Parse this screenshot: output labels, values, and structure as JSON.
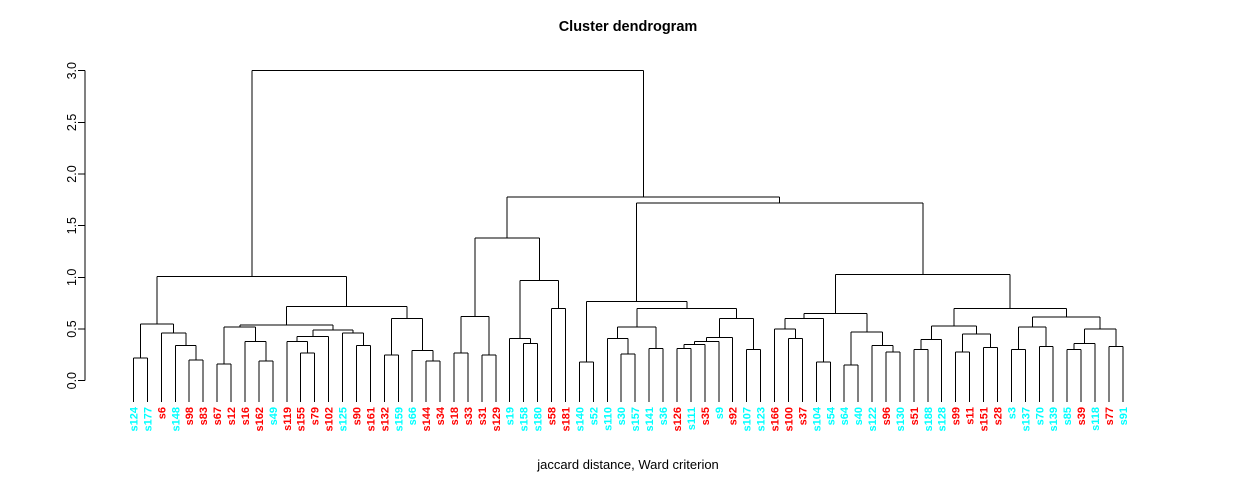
{
  "chart_data": {
    "type": "dendrogram",
    "title": "Cluster dendrogram",
    "xlabel": "jaccard distance, Ward criterion",
    "ylabel": "",
    "ylim": [
      0,
      3
    ],
    "yticks": [
      0.0,
      0.5,
      1.0,
      1.5,
      2.0,
      2.5,
      3.0
    ],
    "grid": false,
    "leaf_count": 72,
    "cluster_colors": {
      "cyan": "#00FFFF",
      "red": "#FF0000",
      "line": "#000000"
    },
    "leaves": [
      {
        "label": "s124",
        "color": "cyan"
      },
      {
        "label": "s177",
        "color": "cyan"
      },
      {
        "label": "s6",
        "color": "red"
      },
      {
        "label": "s148",
        "color": "cyan"
      },
      {
        "label": "s98",
        "color": "red"
      },
      {
        "label": "s83",
        "color": "red"
      },
      {
        "label": "s67",
        "color": "red"
      },
      {
        "label": "s12",
        "color": "red"
      },
      {
        "label": "s16",
        "color": "red"
      },
      {
        "label": "s162",
        "color": "red"
      },
      {
        "label": "s49",
        "color": "cyan"
      },
      {
        "label": "s119",
        "color": "red"
      },
      {
        "label": "s155",
        "color": "red"
      },
      {
        "label": "s79",
        "color": "red"
      },
      {
        "label": "s102",
        "color": "red"
      },
      {
        "label": "s125",
        "color": "cyan"
      },
      {
        "label": "s90",
        "color": "red"
      },
      {
        "label": "s161",
        "color": "red"
      },
      {
        "label": "s132",
        "color": "red"
      },
      {
        "label": "s159",
        "color": "cyan"
      },
      {
        "label": "s66",
        "color": "cyan"
      },
      {
        "label": "s144",
        "color": "red"
      },
      {
        "label": "s34",
        "color": "red"
      },
      {
        "label": "s18",
        "color": "red"
      },
      {
        "label": "s33",
        "color": "red"
      },
      {
        "label": "s31",
        "color": "red"
      },
      {
        "label": "s129",
        "color": "red"
      },
      {
        "label": "s19",
        "color": "cyan"
      },
      {
        "label": "s158",
        "color": "cyan"
      },
      {
        "label": "s180",
        "color": "cyan"
      },
      {
        "label": "s58",
        "color": "red"
      },
      {
        "label": "s181",
        "color": "red"
      },
      {
        "label": "s140",
        "color": "cyan"
      },
      {
        "label": "s52",
        "color": "cyan"
      },
      {
        "label": "s110",
        "color": "cyan"
      },
      {
        "label": "s30",
        "color": "cyan"
      },
      {
        "label": "s157",
        "color": "cyan"
      },
      {
        "label": "s141",
        "color": "cyan"
      },
      {
        "label": "s36",
        "color": "cyan"
      },
      {
        "label": "s126",
        "color": "red"
      },
      {
        "label": "s111",
        "color": "cyan"
      },
      {
        "label": "s35",
        "color": "red"
      },
      {
        "label": "s9",
        "color": "cyan"
      },
      {
        "label": "s92",
        "color": "red"
      },
      {
        "label": "s107",
        "color": "cyan"
      },
      {
        "label": "s123",
        "color": "cyan"
      },
      {
        "label": "s166",
        "color": "red"
      },
      {
        "label": "s100",
        "color": "red"
      },
      {
        "label": "s37",
        "color": "red"
      },
      {
        "label": "s104",
        "color": "cyan"
      },
      {
        "label": "s54",
        "color": "cyan"
      },
      {
        "label": "s64",
        "color": "cyan"
      },
      {
        "label": "s40",
        "color": "cyan"
      },
      {
        "label": "s122",
        "color": "cyan"
      },
      {
        "label": "s96",
        "color": "red"
      },
      {
        "label": "s130",
        "color": "cyan"
      },
      {
        "label": "s51",
        "color": "red"
      },
      {
        "label": "s188",
        "color": "cyan"
      },
      {
        "label": "s128",
        "color": "cyan"
      },
      {
        "label": "s99",
        "color": "red"
      },
      {
        "label": "s11",
        "color": "red"
      },
      {
        "label": "s151",
        "color": "red"
      },
      {
        "label": "s28",
        "color": "red"
      },
      {
        "label": "s3",
        "color": "cyan"
      },
      {
        "label": "s137",
        "color": "cyan"
      },
      {
        "label": "s70",
        "color": "cyan"
      },
      {
        "label": "s139",
        "color": "cyan"
      },
      {
        "label": "s85",
        "color": "cyan"
      },
      {
        "label": "s39",
        "color": "red"
      },
      {
        "label": "s118",
        "color": "cyan"
      },
      {
        "label": "s77",
        "color": "red"
      },
      {
        "label": "s91",
        "color": "cyan"
      }
    ],
    "merge_tree": [
      3.0,
      [
        1.01,
        [
          0.55,
          [
            0.22,
            "s124",
            "s177"
          ],
          [
            0.46,
            "s6",
            [
              0.34,
              "s148",
              [
                0.2,
                "s98",
                "s83"
              ]
            ]
          ]
        ],
        [
          0.72,
          [
            0.54,
            [
              0.52,
              [
                0.16,
                "s67",
                "s12"
              ],
              [
                0.38,
                "s16",
                [
                  0.19,
                  "s162",
                  "s49"
                ]
              ]
            ],
            [
              0.49,
              [
                0.43,
                [
                  0.38,
                  "s119",
                  [
                    0.27,
                    "s155",
                    "s79"
                  ]
                ],
                "s102"
              ],
              [
                0.46,
                "s125",
                [
                  0.34,
                  "s90",
                  "s161"
                ]
              ]
            ]
          ],
          [
            0.6,
            [
              0.25,
              "s132",
              "s159"
            ],
            [
              0.29,
              "s66",
              [
                0.19,
                "s144",
                "s34"
              ]
            ]
          ]
        ]
      ],
      [
        1.78,
        [
          1.38,
          [
            0.62,
            [
              0.27,
              "s18",
              "s33"
            ],
            [
              0.25,
              "s31",
              "s129"
            ]
          ],
          [
            0.97,
            [
              0.41,
              "s19",
              [
                0.36,
                "s158",
                "s180"
              ]
            ],
            [
              0.7,
              "s58",
              "s181"
            ]
          ]
        ],
        [
          1.72,
          [
            0.765,
            [
              0.18,
              "s140",
              "s52"
            ],
            [
              0.7,
              [
                0.52,
                [
                  0.41,
                  "s110",
                  [
                    0.26,
                    "s30",
                    "s157"
                  ]
                ],
                [
                  0.31,
                  "s141",
                  "s36"
                ]
              ],
              [
                0.6,
                [
                  0.42,
                  [
                    0.38,
                    [
                      0.35,
                      [
                        0.31,
                        "s126",
                        "s111"
                      ],
                      "s35"
                    ],
                    "s9"
                  ],
                  "s92"
                ],
                [
                  0.3,
                  "s107",
                  "s123"
                ]
              ]
            ]
          ],
          [
            1.03,
            [
              0.65,
              [
                0.6,
                [
                  0.5,
                  "s166",
                  [
                    0.41,
                    "s100",
                    "s37"
                  ]
                ],
                [
                  0.18,
                  "s104",
                  "s54"
                ]
              ],
              [
                0.47,
                [
                  0.15,
                  "s64",
                  "s40"
                ],
                [
                  0.34,
                  "s122",
                  [
                    0.28,
                    "s96",
                    "s130"
                  ]
                ]
              ]
            ],
            [
              0.7,
              [
                0.53,
                [
                  0.4,
                  [
                    0.3,
                    "s51",
                    "s188"
                  ],
                  "s128"
                ],
                [
                  0.45,
                  [
                    0.28,
                    "s99",
                    "s11"
                  ],
                  [
                    0.32,
                    "s151",
                    "s28"
                  ]
                ]
              ],
              [
                0.615,
                [
                  0.52,
                  [
                    0.3,
                    "s3",
                    "s137"
                  ],
                  [
                    0.33,
                    "s70",
                    "s139"
                  ]
                ],
                [
                  0.5,
                  [
                    0.36,
                    [
                      0.3,
                      "s85",
                      "s39"
                    ],
                    "s118"
                  ],
                  [
                    0.33,
                    "s77",
                    "s91"
                  ]
                ]
              ]
            ]
          ]
        ]
      ]
    ]
  }
}
